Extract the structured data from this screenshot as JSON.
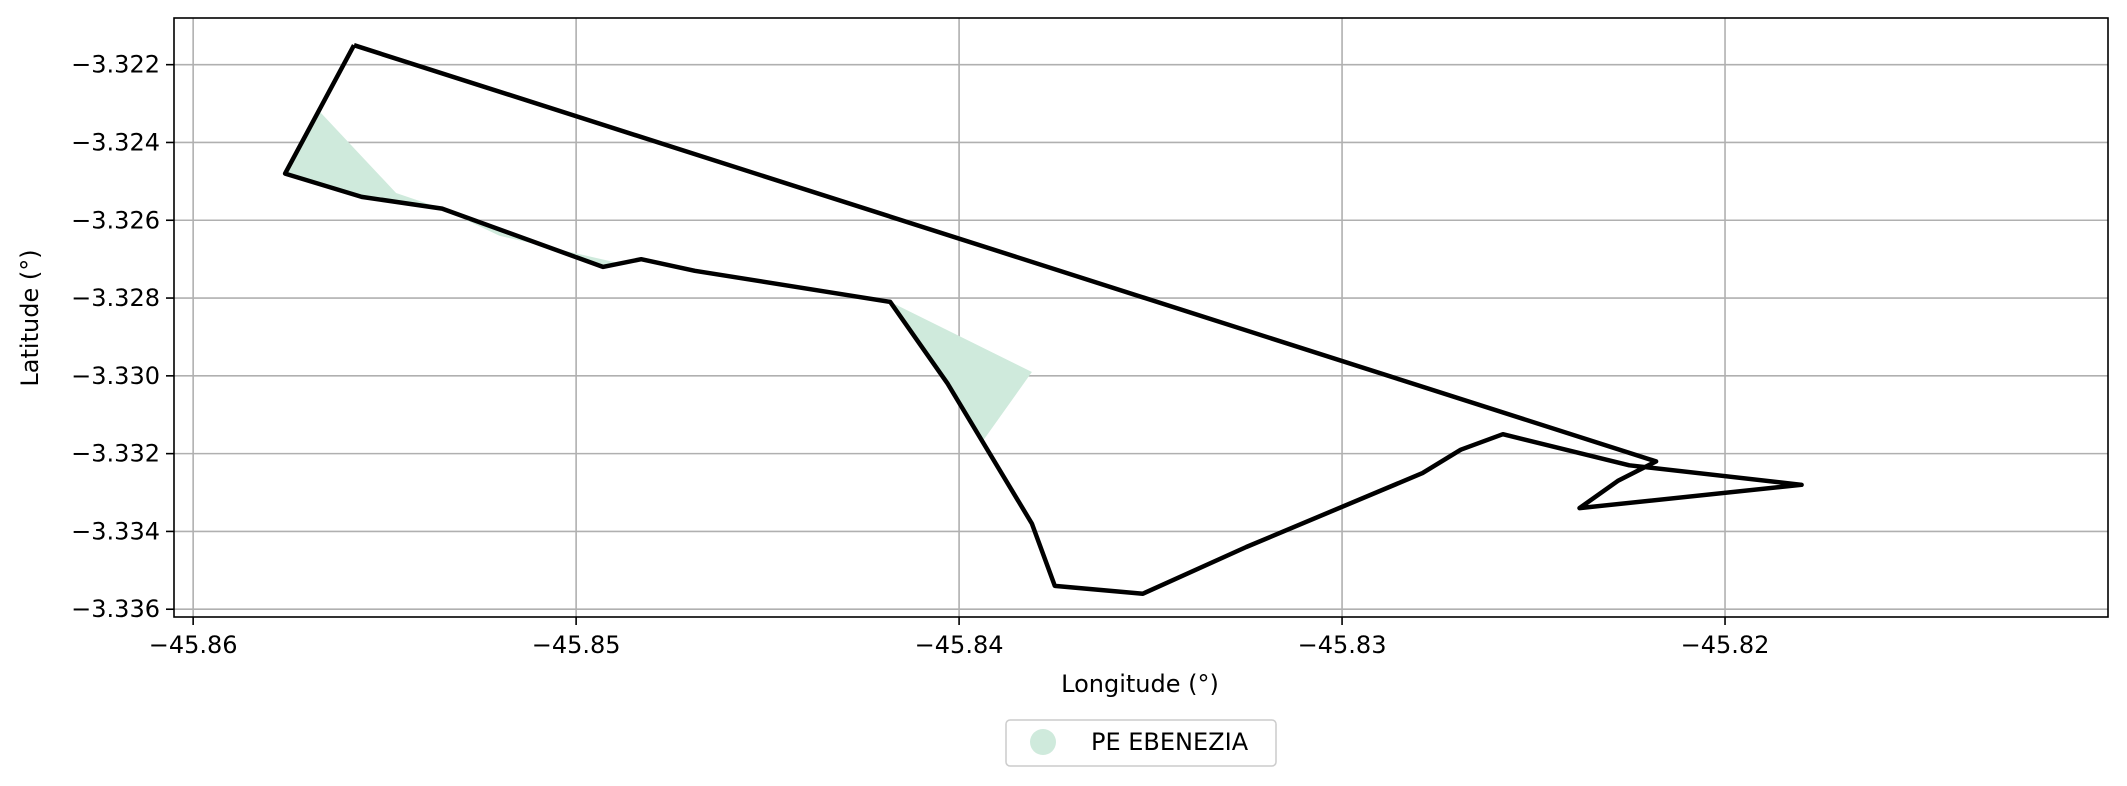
{
  "chart_data": {
    "type": "map",
    "xlabel": "Longitude (°)",
    "ylabel": "Latitude (°)",
    "xlim": [
      -45.8605,
      -45.81
    ],
    "ylim": [
      -3.3362,
      -3.3208
    ],
    "xticks": [
      -45.86,
      -45.85,
      -45.84,
      -45.83,
      -45.82
    ],
    "xtick_labels": [
      "−45.86",
      "−45.85",
      "−45.84",
      "−45.83",
      "−45.82"
    ],
    "yticks": [
      -3.322,
      -3.324,
      -3.326,
      -3.328,
      -3.33,
      -3.332,
      -3.334,
      -3.336
    ],
    "ytick_labels": [
      "−3.322",
      "−3.324",
      "−3.326",
      "−3.328",
      "−3.330",
      "−3.332",
      "−3.334",
      "−3.336"
    ],
    "grid": true,
    "legend_position": "bottom-center",
    "legend": [
      {
        "label": "PE EBENEZIA",
        "color": "#cfeadc"
      }
    ],
    "fill_color": "#cfeadc",
    "outline_color": "#000000",
    "fill_polygons": [
      [
        [
          -45.8576,
          -3.3248
        ],
        [
          -45.8567,
          -3.3232
        ],
        [
          -45.8547,
          -3.3253
        ],
        [
          -45.8535,
          -3.3257
        ],
        [
          -45.8556,
          -3.3254
        ]
      ],
      [
        [
          -45.8535,
          -3.3257
        ],
        [
          -45.8493,
          -3.3272
        ],
        [
          -45.8489,
          -3.3271
        ],
        [
          -45.852,
          -3.3264
        ]
      ],
      [
        [
          -45.8418,
          -3.3281
        ],
        [
          -45.8381,
          -3.3299
        ],
        [
          -45.8394,
          -3.3317
        ],
        [
          -45.8404,
          -3.33
        ]
      ]
    ],
    "outline": [
      [
        -45.8558,
        -3.3215
      ],
      [
        -45.8218,
        -3.3322
      ],
      [
        -45.8228,
        -3.3327
      ],
      [
        -45.8238,
        -3.3334
      ],
      [
        -45.818,
        -3.3328
      ],
      [
        -45.8225,
        -3.3323
      ],
      [
        -45.8258,
        -3.3315
      ],
      [
        -45.8269,
        -3.3319
      ],
      [
        -45.8279,
        -3.3325
      ],
      [
        -45.8325,
        -3.3344
      ],
      [
        -45.8352,
        -3.3356
      ],
      [
        -45.8375,
        -3.3354
      ],
      [
        -45.8381,
        -3.3338
      ],
      [
        -45.8403,
        -3.3302
      ],
      [
        -45.8418,
        -3.3281
      ],
      [
        -45.8469,
        -3.3273
      ],
      [
        -45.8483,
        -3.327
      ],
      [
        -45.8493,
        -3.3272
      ],
      [
        -45.8535,
        -3.3257
      ],
      [
        -45.8556,
        -3.3254
      ],
      [
        -45.8576,
        -3.3248
      ],
      [
        -45.8558,
        -3.3215
      ]
    ]
  }
}
